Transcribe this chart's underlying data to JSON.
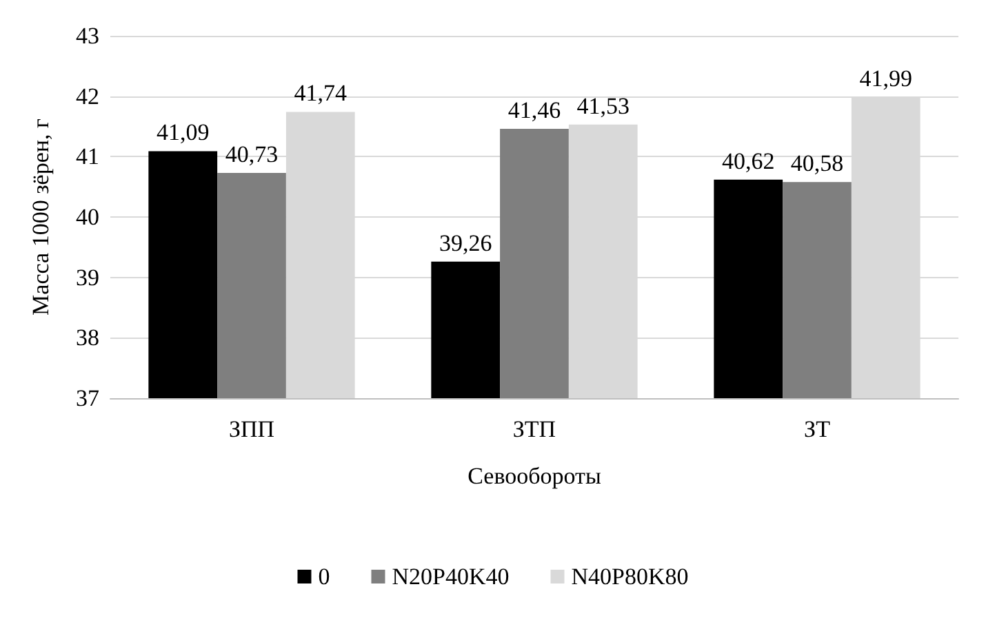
{
  "chart_data": {
    "type": "bar",
    "xlabel": "Севообороты",
    "ylabel": "Масса 1000 зёрен, г",
    "categories": [
      "ЗПП",
      "ЗТП",
      "ЗТ"
    ],
    "series": [
      {
        "name": "0",
        "color": "#000000",
        "values": [
          41.09,
          39.26,
          40.62
        ],
        "value_labels": [
          "41,09",
          "39,26",
          "40,62"
        ]
      },
      {
        "name": "N20P40K40",
        "color": "#7f7f7f",
        "values": [
          40.73,
          41.46,
          40.58
        ],
        "value_labels": [
          "40,73",
          "41,46",
          "40,58"
        ]
      },
      {
        "name": "N40P80K80",
        "color": "#d9d9d9",
        "values": [
          41.74,
          41.53,
          41.99
        ],
        "value_labels": [
          "41,74",
          "41,53",
          "41,99"
        ]
      }
    ],
    "ylim": [
      37,
      43
    ],
    "yticks": [
      37,
      38,
      39,
      40,
      41,
      42,
      43
    ],
    "grid": "y",
    "legend": "bottom"
  }
}
